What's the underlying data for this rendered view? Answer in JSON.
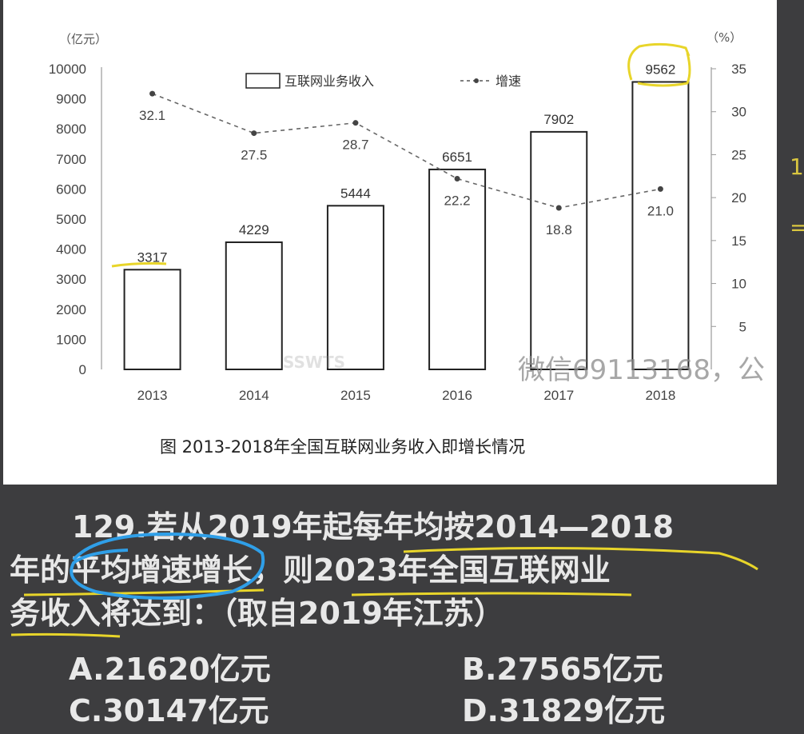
{
  "chart_data": {
    "type": "bar",
    "categories": [
      "2013",
      "2014",
      "2015",
      "2016",
      "2017",
      "2018"
    ],
    "series": [
      {
        "name": "互联网业务收入",
        "type": "bar",
        "axis": "left",
        "values": [
          3317,
          4229,
          5444,
          6651,
          7902,
          9562
        ]
      },
      {
        "name": "增速",
        "type": "line",
        "axis": "right",
        "values": [
          32.1,
          27.5,
          28.7,
          22.2,
          18.8,
          21.0
        ]
      }
    ],
    "bar_labels": [
      "3317",
      "4229",
      "5444",
      "6651",
      "7902",
      "9562"
    ],
    "rate_labels": [
      "32.1",
      "27.5",
      "28.7",
      "22.2",
      "18.8",
      "21.0"
    ],
    "title": "图 2013-2018年全国互联网业务收入即增长情况",
    "ylabel_left": "（亿元）",
    "ylabel_right": "（%）",
    "ylim_left": [
      0,
      10000
    ],
    "ylim_right": [
      0,
      35
    ],
    "yticks_left": [
      "0",
      "1000",
      "2000",
      "3000",
      "4000",
      "5000",
      "6000",
      "7000",
      "8000",
      "9000",
      "10000"
    ],
    "yticks_right": [
      "5",
      "10",
      "15",
      "20",
      "25",
      "30",
      "35"
    ],
    "legend": [
      "互联网业务收入",
      "增速"
    ],
    "legend_position": "top-center",
    "grid": false
  },
  "watermarks": {
    "wechat": "微信69113168，公",
    "faint": "SSWTS"
  },
  "side_marks": [
    "1",
    "="
  ],
  "question": {
    "line1": "129.若从2019年起每年均按2014—2018",
    "line2": "年的平均增速增长，则2023年全国互联网业",
    "line3": "务收入将达到：（取自2019年江苏）"
  },
  "options": {
    "a": "A.21620亿元",
    "b": "B.27565亿元",
    "c": "C.30147亿元",
    "d": "D.31829亿元"
  },
  "colors": {
    "background": "#3d3d3f",
    "panel": "#ffffff",
    "bar_fill": "#ffffff",
    "bar_stroke": "#222222",
    "line": "#555555",
    "highlight_yellow": "#e8d52a",
    "highlight_blue": "#2f9fe8",
    "question_text": "#e8e8e8"
  }
}
